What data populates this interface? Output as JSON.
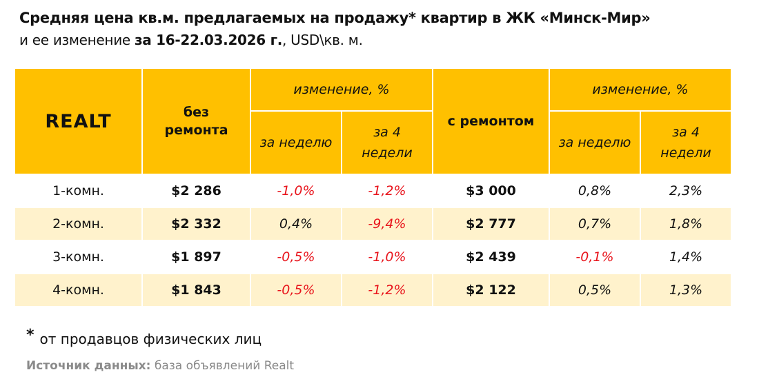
{
  "title": "Средняя цена кв.м. предлагаемых на продажу* квартир в ЖК «Минск-Мир»",
  "subtitle": {
    "prefix": "и ее изменение ",
    "period": "за 16-22.03.2026 г.",
    "suffix": ", USD\\кв. м."
  },
  "header": {
    "logo": "REALT",
    "without_repair": "без ремонта",
    "change": "изменение, %",
    "week": "за неделю",
    "four_weeks": "за 4 недели",
    "with_repair": "с ремонтом"
  },
  "rows": [
    {
      "label": "1-комн.",
      "price_no": "$2 286",
      "w_no": "-1,0%",
      "m_no": "-1,2%",
      "price_rep": "$3 000",
      "w_rep": "0,8%",
      "m_rep": "2,3%"
    },
    {
      "label": "2-комн.",
      "price_no": "$2 332",
      "w_no": "0,4%",
      "m_no": "-9,4%",
      "price_rep": "$2 777",
      "w_rep": "0,7%",
      "m_rep": "1,8%"
    },
    {
      "label": "3-комн.",
      "price_no": "$1 897",
      "w_no": "-0,5%",
      "m_no": "-1,0%",
      "price_rep": "$2 439",
      "w_rep": "-0,1%",
      "m_rep": "1,4%"
    },
    {
      "label": "4-комн.",
      "price_no": "$1 843",
      "w_no": "-0,5%",
      "m_no": "-1,2%",
      "price_rep": "$2 122",
      "w_rep": "0,5%",
      "m_rep": "1,3%"
    }
  ],
  "footnote": {
    "mark": "*",
    "text": "от продавцов физических лиц"
  },
  "source": {
    "label": "Источник данных:",
    "text": " база объявлений Realt"
  },
  "colors": {
    "header": "#FFC000",
    "alt_row": "#FFF2CC",
    "negative": "#E8141C"
  }
}
